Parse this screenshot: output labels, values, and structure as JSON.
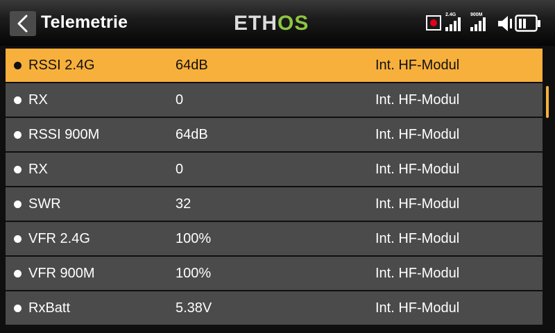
{
  "header": {
    "title": "Telemetrie",
    "logo_left": "ETH",
    "logo_right": "OS",
    "signal_1_label": "2.4G",
    "signal_2_label": "900M"
  },
  "colors": {
    "accent": "#f7b03b",
    "row_bg": "#4b4b4b",
    "logo_green": "#8ec63f",
    "record_red": "#e8001c"
  },
  "sensors": [
    {
      "name": "RSSI 2.4G",
      "value": "64dB",
      "source": "Int. HF-Modul",
      "selected": true
    },
    {
      "name": "RX",
      "value": "0",
      "source": "Int. HF-Modul",
      "selected": false
    },
    {
      "name": "RSSI 900M",
      "value": "64dB",
      "source": "Int. HF-Modul",
      "selected": false
    },
    {
      "name": "RX",
      "value": "0",
      "source": "Int. HF-Modul",
      "selected": false
    },
    {
      "name": "SWR",
      "value": "32",
      "source": "Int. HF-Modul",
      "selected": false
    },
    {
      "name": "VFR 2.4G",
      "value": "100%",
      "source": "Int. HF-Modul",
      "selected": false
    },
    {
      "name": "VFR 900M",
      "value": "100%",
      "source": "Int. HF-Modul",
      "selected": false
    },
    {
      "name": "RxBatt",
      "value": "5.38V",
      "source": "Int. HF-Modul",
      "selected": false
    }
  ],
  "icons": [
    "back-arrow-icon",
    "record-icon",
    "signal-bars-icon",
    "speaker-icon",
    "battery-icon"
  ]
}
